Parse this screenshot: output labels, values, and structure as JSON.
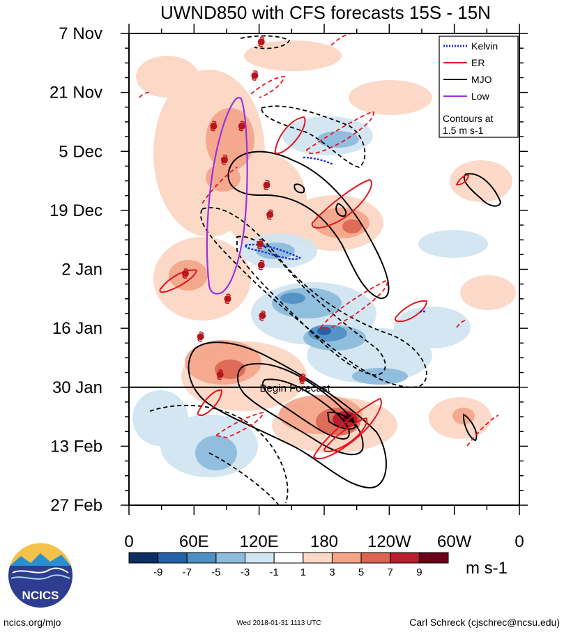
{
  "chart_data": {
    "type": "heatmap",
    "title": "UWND850 with CFS forecasts  15S - 15N",
    "x_ticks": [
      {
        "label": "0",
        "lon": 0
      },
      {
        "label": "60E",
        "lon": 60
      },
      {
        "label": "120E",
        "lon": 120
      },
      {
        "label": "180",
        "lon": 180
      },
      {
        "label": "120W",
        "lon": 240
      },
      {
        "label": "60W",
        "lon": 300
      },
      {
        "label": "0",
        "lon": 360
      }
    ],
    "x_range": [
      0,
      360
    ],
    "y_ticks": [
      {
        "label": "7 Nov",
        "day": 0
      },
      {
        "label": "21 Nov",
        "day": 14
      },
      {
        "label": "5 Dec",
        "day": 28
      },
      {
        "label": "19 Dec",
        "day": 42
      },
      {
        "label": "2 Jan",
        "day": 56
      },
      {
        "label": "16 Jan",
        "day": 70
      },
      {
        "label": "30 Jan",
        "day": 84
      },
      {
        "label": "13 Feb",
        "day": 98
      },
      {
        "label": "27 Feb",
        "day": 112
      }
    ],
    "y_range_days": [
      0,
      112
    ],
    "forecast_start_day": 84,
    "forecast_label": "Begin Forecast",
    "legend": {
      "entries": [
        {
          "label": "Kelvin",
          "color": "#1f2fd8",
          "style": "dotted"
        },
        {
          "label": "ER",
          "color": "#e8141c",
          "style": "solid"
        },
        {
          "label": "MJO",
          "color": "#000000",
          "style": "solid"
        },
        {
          "label": "Low",
          "color": "#9b30e0",
          "style": "solid"
        }
      ],
      "note_line1": "Contours at",
      "note_line2": "1.5 m s-1",
      "placement": "top-right"
    },
    "colorbar": {
      "unit": "m s-1",
      "ticks": [
        "-9",
        "-7",
        "-5",
        "-3",
        "-1",
        "1",
        "3",
        "5",
        "7",
        "9"
      ],
      "colors": [
        "#0b2f63",
        "#2561a8",
        "#4f8fc3",
        "#8dbcdc",
        "#d1e5f1",
        "#ffffff",
        "#fcd7c5",
        "#f4a489",
        "#dc6552",
        "#b91e2e",
        "#6b0019"
      ]
    },
    "storm_markers": [
      {
        "lon": 122,
        "day": 2
      },
      {
        "lon": 116,
        "day": 10
      },
      {
        "lon": 78,
        "day": 22
      },
      {
        "lon": 104,
        "day": 22
      },
      {
        "lon": 88,
        "day": 30
      },
      {
        "lon": 127,
        "day": 36
      },
      {
        "lon": 130,
        "day": 43
      },
      {
        "lon": 121,
        "day": 50
      },
      {
        "lon": 122,
        "day": 55
      },
      {
        "lon": 52,
        "day": 57
      },
      {
        "lon": 91,
        "day": 63
      },
      {
        "lon": 123,
        "day": 67
      },
      {
        "lon": 66,
        "day": 72
      },
      {
        "lon": 84,
        "day": 81
      },
      {
        "lon": 160,
        "day": 82
      }
    ]
  },
  "footer": {
    "logo_text": "NCICS",
    "site": "ncics.org/mjo",
    "timestamp": "Wed 2018-01-31 1113 UTC",
    "author": "Carl Schreck (cjschrec@ncsu.edu)"
  },
  "colors": {
    "kelvin": "#1f2fd8",
    "er": "#e8141c",
    "mjo": "#000000",
    "low": "#9b30e0",
    "storm": "#b8141c"
  }
}
